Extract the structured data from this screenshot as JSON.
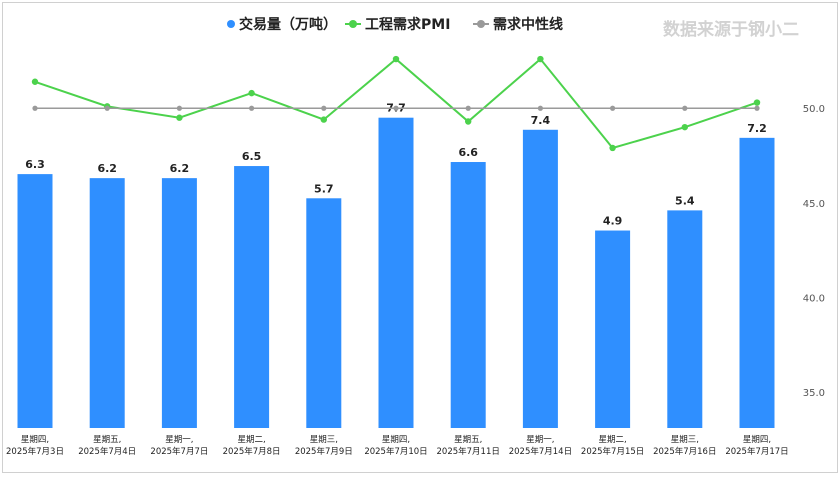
{
  "watermark": "数据来源于钢小二",
  "chart_data": {
    "type": "bar+line",
    "title": "",
    "legend": [
      {
        "name": "交易量（万吨）",
        "color": "#2f8fff",
        "marker": "dot"
      },
      {
        "name": "工程需求PMI",
        "color": "#4cd24c",
        "marker": "line-dot"
      },
      {
        "name": "需求中性线",
        "color": "#9a9a9a",
        "marker": "line-dot"
      }
    ],
    "legend_position": "top-center",
    "categories": [
      [
        "星期四,",
        "2025年7月3日"
      ],
      [
        "星期五,",
        "2025年7月4日"
      ],
      [
        "星期一,",
        "2025年7月7日"
      ],
      [
        "星期二,",
        "2025年7月8日"
      ],
      [
        "星期三,",
        "2025年7月9日"
      ],
      [
        "星期四,",
        "2025年7月10日"
      ],
      [
        "星期五,",
        "2025年7月11日"
      ],
      [
        "星期一,",
        "2025年7月14日"
      ],
      [
        "星期二,",
        "2025年7月15日"
      ],
      [
        "星期三,",
        "2025年7月16日"
      ],
      [
        "星期四,",
        "2025年7月17日"
      ]
    ],
    "series": [
      {
        "name": "交易量（万吨）",
        "type": "bar",
        "values": [
          6.3,
          6.2,
          6.2,
          6.5,
          5.7,
          7.7,
          6.6,
          7.4,
          4.9,
          5.4,
          7.2
        ],
        "labels": [
          "6.3",
          "6.2",
          "6.2",
          "6.5",
          "5.7",
          "7.7",
          "6.6",
          "7.4",
          "4.9",
          "5.4",
          "7.2"
        ],
        "color": "#2f8fff"
      },
      {
        "name": "工程需求PMI",
        "type": "line",
        "axis": "right",
        "values": [
          51.4,
          50.1,
          49.5,
          50.8,
          49.4,
          52.6,
          49.3,
          52.6,
          47.9,
          49.0,
          50.3
        ],
        "color": "#4cd24c"
      },
      {
        "name": "需求中性线",
        "type": "line",
        "axis": "right",
        "values": [
          50,
          50,
          50,
          50,
          50,
          50,
          50,
          50,
          50,
          50,
          50
        ],
        "color": "#9a9a9a"
      }
    ],
    "left_axis": {
      "range": [
        0,
        10
      ],
      "visible": false
    },
    "right_axis": {
      "range": [
        33.1,
        54.4
      ],
      "ticks": [
        35.0,
        40.0,
        45.0,
        50.0
      ],
      "tick_labels": [
        "35.0",
        "40.0",
        "45.0",
        "50.0"
      ]
    },
    "grid": false
  }
}
